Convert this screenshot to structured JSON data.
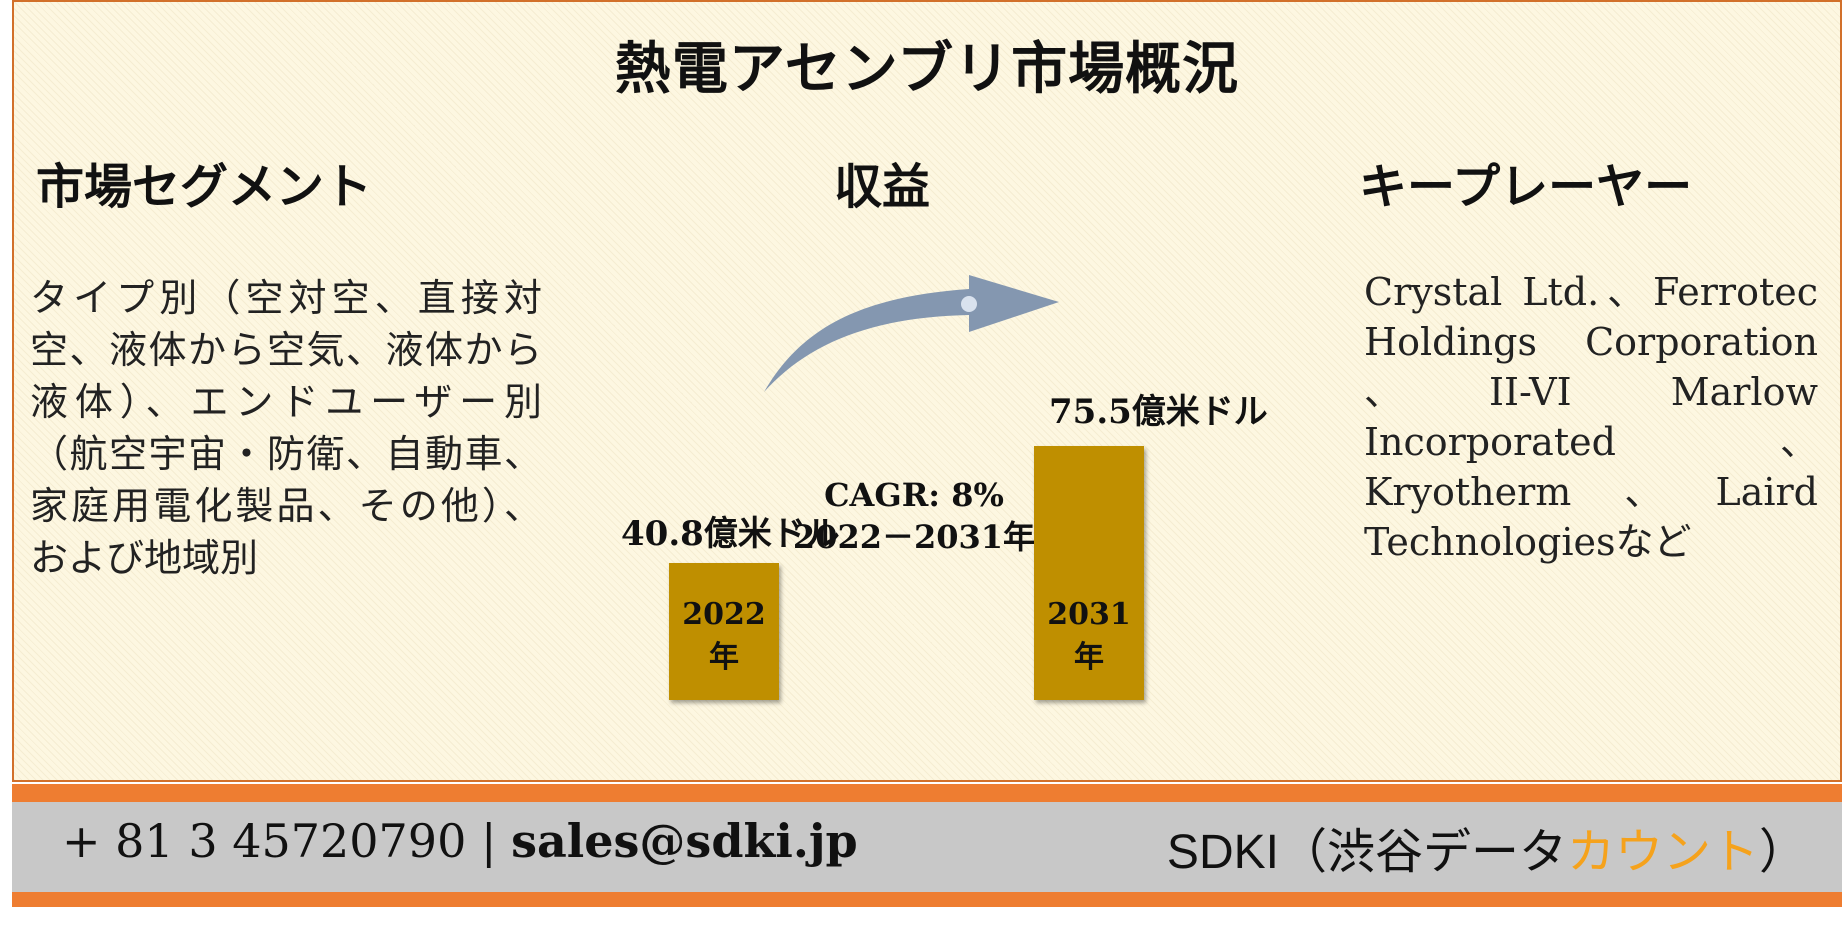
{
  "title": "熱電アセンブリ市場概況",
  "sections": {
    "segments_heading": "市場セグメント",
    "revenue_heading": "収益",
    "players_heading": "キープレーヤー"
  },
  "segments_text": "タイプ別（空対空、直接対空、液体から空気、液体から液体）、エンドユーザー別（航空宇宙・防衛、自動車、家庭用電化製品、その他）、および地域別",
  "players_text": "Crystal Ltd.、Ferrotec Holdings Corporation 、II-VI Marlow Incorporated、Kryotherm、Laird Technologiesなど",
  "chart_data": {
    "type": "bar",
    "categories": [
      "2022年",
      "2031年"
    ],
    "values": [
      40.8,
      75.5
    ],
    "value_labels": [
      "40.8億米ドル",
      "75.5億米ドル"
    ],
    "annotation": {
      "cagr": "CAGR: 8%",
      "period": "2022－2031年"
    },
    "colors": {
      "bar": "#bf8f00",
      "arrow": "#8497b0"
    }
  },
  "footer": {
    "phone": "+ 81 3 45720790",
    "separator": "|",
    "email": "sales@sdki.jp",
    "brand_prefix": "SDKI（渋谷データ",
    "brand_accent": "カウント",
    "brand_suffix": "）",
    "colors": {
      "band": "#ee7d31",
      "panel": "#c8c8c8",
      "accent": "#f5a21c"
    }
  }
}
